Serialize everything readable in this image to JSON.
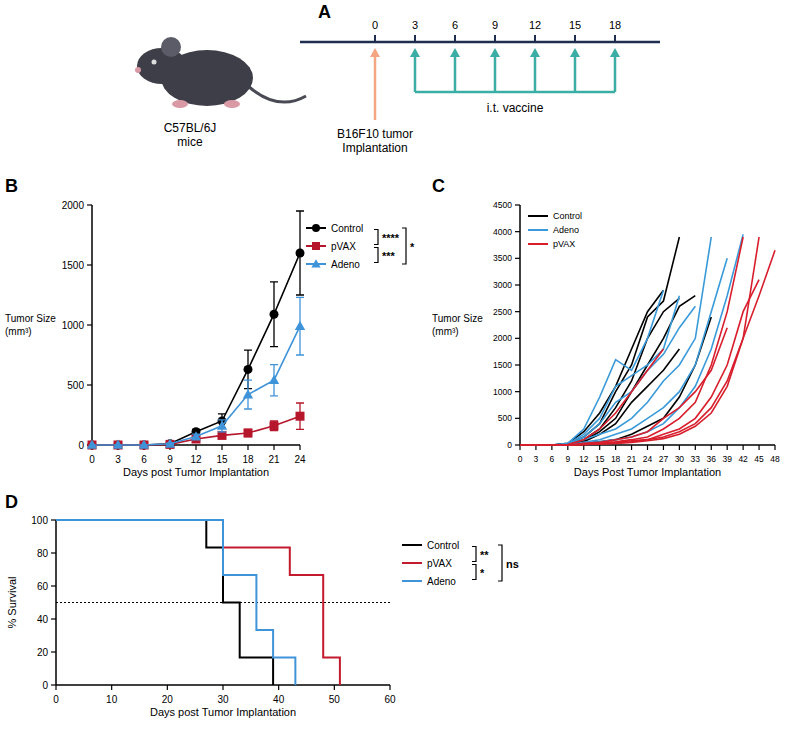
{
  "diagram": {
    "panel": "A",
    "subject": "C57BL/6J\nmice",
    "timeline_ticks": [
      0,
      3,
      6,
      9,
      12,
      15,
      18
    ],
    "implantation": {
      "day": 0,
      "label": "B16F10 tumor\nImplantation"
    },
    "vaccine": {
      "days": [
        3,
        6,
        9,
        12,
        15,
        18
      ],
      "label": "i.t. vaccine"
    }
  },
  "chart_data": [
    {
      "panel": "B",
      "type": "line",
      "x_label": "Days post Tumor Implantation",
      "y_label": "Tumor Size\n(mm³)",
      "x": [
        0,
        3,
        6,
        9,
        12,
        15,
        18,
        21,
        24
      ],
      "xlim": [
        0,
        24
      ],
      "xticks": [
        0,
        3,
        6,
        9,
        12,
        15,
        18,
        21,
        24
      ],
      "ylim": [
        0,
        2000
      ],
      "yticks": [
        0,
        500,
        1000,
        1500,
        2000
      ],
      "legend": "right",
      "series": [
        {
          "name": "Control",
          "color": "#000000",
          "marker": "circle",
          "values": [
            0,
            0,
            0,
            10,
            110,
            200,
            630,
            1090,
            1600
          ],
          "errors": [
            0,
            0,
            0,
            5,
            20,
            60,
            160,
            270,
            350
          ]
        },
        {
          "name": "pVAX",
          "color": "#b5162b",
          "marker": "square",
          "values": [
            0,
            0,
            0,
            5,
            50,
            80,
            100,
            160,
            240
          ],
          "errors": [
            0,
            0,
            0,
            3,
            15,
            20,
            30,
            40,
            110
          ]
        },
        {
          "name": "Adeno",
          "color": "#3f94d9",
          "marker": "triangle",
          "values": [
            0,
            0,
            0,
            10,
            70,
            160,
            420,
            540,
            990
          ],
          "errors": [
            0,
            0,
            0,
            5,
            20,
            50,
            120,
            130,
            240
          ]
        }
      ],
      "significance": [
        {
          "between": [
            0,
            1
          ],
          "label": "****"
        },
        {
          "between": [
            1,
            2
          ],
          "label": "***"
        },
        {
          "between": [
            0,
            2
          ],
          "label": "*"
        }
      ]
    },
    {
      "panel": "C",
      "type": "line",
      "x_label": "Days Post Tumor Implantation",
      "y_label": "Tumor Size\n(mm³)",
      "xlim": [
        0,
        48
      ],
      "xticks": [
        0,
        3,
        6,
        9,
        12,
        15,
        18,
        21,
        24,
        27,
        30,
        33,
        36,
        39,
        42,
        45,
        48
      ],
      "ylim": [
        0,
        4500
      ],
      "yticks": [
        0,
        500,
        1000,
        1500,
        2000,
        2500,
        3000,
        3500,
        4000,
        4500
      ],
      "legend": "upper left",
      "series": [
        {
          "name": "Control",
          "color": "#000000",
          "x": [
            0,
            3,
            6,
            9,
            12,
            15,
            18,
            21,
            24,
            27,
            30,
            33,
            36,
            39,
            42,
            45,
            48
          ],
          "values": [
            [
              0,
              0,
              0,
              30,
              250,
              600,
              1100,
              1800,
              2500,
              2900,
              null,
              null,
              null,
              null,
              null,
              null,
              null
            ],
            [
              0,
              0,
              0,
              20,
              150,
              400,
              1000,
              1500,
              2400,
              2700,
              3900,
              null,
              null,
              null,
              null,
              null,
              null
            ],
            [
              0,
              0,
              0,
              20,
              100,
              300,
              700,
              1200,
              2000,
              2500,
              2750,
              null,
              null,
              null,
              null,
              null,
              null
            ],
            [
              0,
              0,
              0,
              10,
              80,
              250,
              500,
              1000,
              1500,
              2000,
              2600,
              2800,
              null,
              null,
              null,
              null,
              null
            ],
            [
              0,
              0,
              0,
              0,
              30,
              60,
              100,
              200,
              350,
              500,
              900,
              1500,
              2400,
              null,
              null,
              null,
              null
            ],
            [
              0,
              0,
              0,
              10,
              60,
              200,
              400,
              800,
              1100,
              1400,
              1800,
              null,
              null,
              null,
              null,
              null,
              null
            ]
          ]
        },
        {
          "name": "Adeno",
          "color": "#3a9ad9",
          "x": [
            0,
            3,
            6,
            9,
            12,
            15,
            18,
            21,
            24,
            27,
            30,
            33,
            36,
            39,
            42,
            45,
            48
          ],
          "values": [
            [
              0,
              0,
              0,
              30,
              300,
              900,
              1600,
              1400,
              2000,
              2900,
              null,
              null,
              null,
              null,
              null,
              null,
              null
            ],
            [
              0,
              0,
              0,
              20,
              200,
              500,
              1100,
              1300,
              1500,
              1800,
              2800,
              null,
              null,
              null,
              null,
              null,
              null
            ],
            [
              0,
              0,
              0,
              10,
              150,
              400,
              800,
              1000,
              1400,
              1700,
              2200,
              2600,
              null,
              null,
              null,
              null,
              null
            ],
            [
              0,
              0,
              0,
              10,
              100,
              200,
              300,
              500,
              800,
              1200,
              1500,
              2000,
              3900,
              null,
              null,
              null,
              null
            ],
            [
              0,
              0,
              0,
              0,
              50,
              100,
              200,
              300,
              500,
              700,
              1000,
              1500,
              2500,
              3500,
              null,
              null,
              null
            ],
            [
              0,
              0,
              0,
              0,
              30,
              60,
              100,
              150,
              250,
              400,
              700,
              1100,
              1800,
              2800,
              3950,
              null,
              null
            ]
          ]
        },
        {
          "name": "pVAX",
          "color": "#d81e2c",
          "x": [
            0,
            3,
            6,
            9,
            12,
            15,
            18,
            21,
            24,
            27,
            30,
            33,
            36,
            39,
            42,
            45,
            48
          ],
          "values": [
            [
              0,
              0,
              0,
              10,
              100,
              300,
              600,
              1000,
              1400,
              1800,
              null,
              null,
              null,
              null,
              null,
              null,
              null
            ],
            [
              0,
              0,
              0,
              0,
              30,
              50,
              100,
              150,
              250,
              500,
              700,
              1000,
              1400,
              2200,
              null,
              null,
              null
            ],
            [
              0,
              0,
              0,
              0,
              20,
              40,
              60,
              100,
              150,
              300,
              500,
              800,
              1500,
              2500,
              3900,
              null,
              null
            ],
            [
              0,
              0,
              0,
              0,
              10,
              30,
              50,
              80,
              100,
              200,
              300,
              500,
              900,
              1500,
              2500,
              3100,
              null
            ],
            [
              0,
              0,
              0,
              0,
              10,
              20,
              40,
              60,
              100,
              150,
              250,
              400,
              700,
              1200,
              2000,
              2800,
              3650
            ],
            [
              0,
              0,
              0,
              0,
              10,
              20,
              30,
              50,
              80,
              120,
              200,
              350,
              600,
              1100,
              2000,
              3900,
              null
            ]
          ]
        }
      ]
    },
    {
      "panel": "D",
      "type": "step",
      "x_label": "Days post Tumor Implantation",
      "y_label": "% Survival",
      "xlim": [
        0,
        60
      ],
      "xticks": [
        0,
        10,
        20,
        30,
        40,
        50,
        60
      ],
      "ylim": [
        0,
        100
      ],
      "yticks": [
        0,
        20,
        40,
        60,
        80,
        100
      ],
      "legend": "right",
      "reference_line": 50,
      "series": [
        {
          "name": "Control",
          "color": "#000000",
          "x": [
            0,
            27,
            30,
            33,
            39
          ],
          "values": [
            100,
            83.3,
            50,
            16.7,
            0
          ]
        },
        {
          "name": "pVAX",
          "color": "#c41a2e",
          "x": [
            0,
            30,
            42,
            48,
            51
          ],
          "values": [
            100,
            83.3,
            66.7,
            16.7,
            0
          ]
        },
        {
          "name": "Adeno",
          "color": "#3f94d9",
          "x": [
            0,
            30,
            36,
            39,
            43
          ],
          "values": [
            100,
            66.7,
            33.3,
            16.7,
            0
          ]
        }
      ],
      "significance": [
        {
          "between": [
            0,
            1
          ],
          "label": "**"
        },
        {
          "between": [
            1,
            2
          ],
          "label": "*"
        },
        {
          "between": [
            0,
            2
          ],
          "label": "ns"
        }
      ]
    }
  ]
}
